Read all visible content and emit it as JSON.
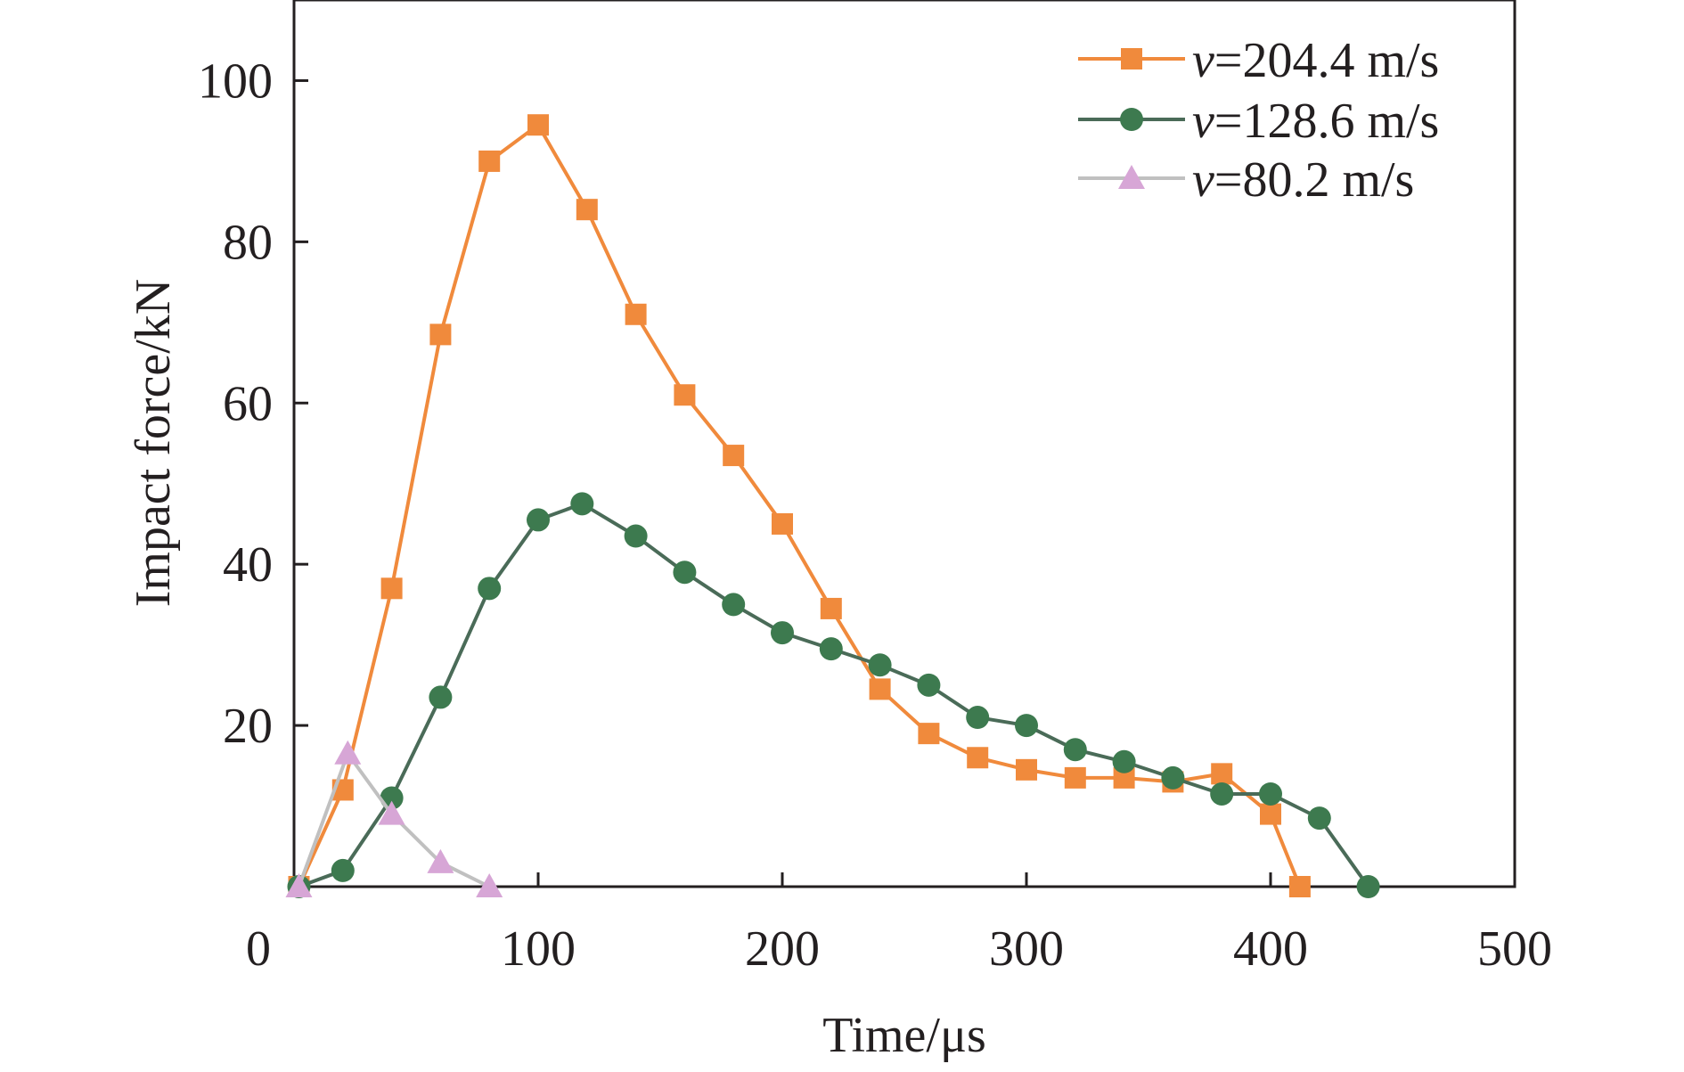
{
  "chart_data": {
    "type": "line",
    "title": "",
    "xlabel": "Time/μs",
    "ylabel": "Impact force/kN",
    "xlim": [
      0,
      500
    ],
    "ylim": [
      0,
      110
    ],
    "x_ticks": [
      0,
      100,
      200,
      300,
      400,
      500
    ],
    "x_tick_labels": [
      "0",
      "100",
      "200",
      "300",
      "400",
      "500"
    ],
    "y_ticks": [
      20,
      40,
      60,
      80,
      100
    ],
    "y_tick_labels": [
      "20",
      "40",
      "60",
      "80",
      "100"
    ],
    "grid": false,
    "legend_position": "top-right",
    "series": [
      {
        "name": "v=204.4 m/s",
        "name_var": "v",
        "name_rest": "=204.4 m/s",
        "marker": "square",
        "color": "#f08a3c",
        "marker_color": "#f08a3c",
        "points": [
          [
            2,
            0
          ],
          [
            20,
            12
          ],
          [
            40,
            37
          ],
          [
            60,
            68.5
          ],
          [
            80,
            90
          ],
          [
            100,
            94.5
          ],
          [
            120,
            84
          ],
          [
            140,
            71
          ],
          [
            160,
            61
          ],
          [
            180,
            53.5
          ],
          [
            200,
            45
          ],
          [
            220,
            34.5
          ],
          [
            240,
            24.5
          ],
          [
            260,
            19
          ],
          [
            280,
            16
          ],
          [
            300,
            14.5
          ],
          [
            320,
            13.5
          ],
          [
            340,
            13.5
          ],
          [
            360,
            13
          ],
          [
            380,
            14
          ],
          [
            400,
            9
          ],
          [
            412,
            0
          ]
        ]
      },
      {
        "name": "v=128.6 m/s",
        "name_var": "v",
        "name_rest": "=128.6 m/s",
        "marker": "circle",
        "color": "#4a6b58",
        "marker_color": "#3d7a4f",
        "points": [
          [
            2,
            0
          ],
          [
            20,
            2
          ],
          [
            40,
            11
          ],
          [
            60,
            23.5
          ],
          [
            80,
            37
          ],
          [
            100,
            45.5
          ],
          [
            118,
            47.5
          ],
          [
            140,
            43.5
          ],
          [
            160,
            39
          ],
          [
            180,
            35
          ],
          [
            200,
            31.5
          ],
          [
            220,
            29.5
          ],
          [
            240,
            27.5
          ],
          [
            260,
            25
          ],
          [
            280,
            21
          ],
          [
            300,
            20
          ],
          [
            320,
            17
          ],
          [
            340,
            15.5
          ],
          [
            360,
            13.5
          ],
          [
            380,
            11.5
          ],
          [
            400,
            11.5
          ],
          [
            420,
            8.5
          ],
          [
            440,
            0
          ]
        ]
      },
      {
        "name": "v=80.2 m/s",
        "name_var": "v",
        "name_rest": "=80.2 m/s",
        "marker": "triangle",
        "color": "#c0c0c0",
        "marker_color": "#d7a6d6",
        "points": [
          [
            2,
            0
          ],
          [
            22,
            16.5
          ],
          [
            40,
            9
          ],
          [
            60,
            3
          ],
          [
            80,
            0
          ]
        ]
      }
    ]
  }
}
